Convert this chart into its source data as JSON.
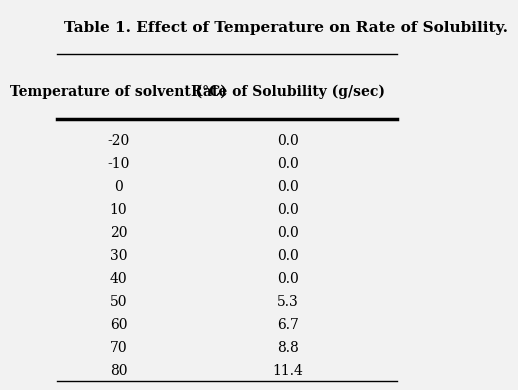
{
  "title": "Table 1. Effect of Temperature on Rate of Solubility.",
  "col1_header": "Temperature of solvent (°C)",
  "col2_header": "Rate of Solubility (g/sec)",
  "temperatures": [
    "-20",
    "-10",
    "0",
    "10",
    "20",
    "30",
    "40",
    "50",
    "60",
    "70",
    "80"
  ],
  "rates": [
    "0.0",
    "0.0",
    "0.0",
    "0.0",
    "0.0",
    "0.0",
    "0.0",
    "5.3",
    "6.7",
    "8.8",
    "11.4"
  ],
  "background_color": "#f2f2f2",
  "text_color": "#000000",
  "title_fontsize": 11,
  "header_fontsize": 10,
  "data_fontsize": 10
}
